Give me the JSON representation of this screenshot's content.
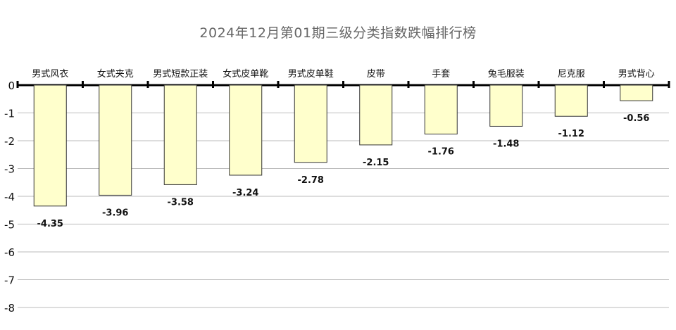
{
  "chart_data": {
    "type": "bar",
    "title": "2024年12月第01期三级分类指数跌幅排行榜",
    "categories": [
      "男式风衣",
      "女式夹克",
      "男式短款正装",
      "女式皮单靴",
      "男式皮单鞋",
      "皮带",
      "手套",
      "兔毛服装",
      "尼克服",
      "男式背心"
    ],
    "values": [
      -4.35,
      -3.96,
      -3.58,
      -3.24,
      -2.78,
      -2.15,
      -1.76,
      -1.48,
      -1.12,
      -0.56
    ],
    "value_labels": [
      "-4.35",
      "-3.96",
      "-3.58",
      "-3.24",
      "-2.78",
      "-2.15",
      "-1.76",
      "-1.48",
      "-1.12",
      "-0.56"
    ],
    "yticks": [
      0,
      -1,
      -2,
      -3,
      -4,
      -5,
      -6,
      -7,
      -8
    ],
    "ytick_labels": [
      "0",
      "-1",
      "-2",
      "-3",
      "-4",
      "-5",
      "-6",
      "-7",
      "-8"
    ],
    "ylim": [
      -8,
      0
    ],
    "grid": true,
    "legend": "none",
    "colors": {
      "bar_fill": "#ffffcc",
      "bar_stroke": "#333333",
      "grid": "#bbbbbb",
      "axis": "#000000"
    }
  }
}
